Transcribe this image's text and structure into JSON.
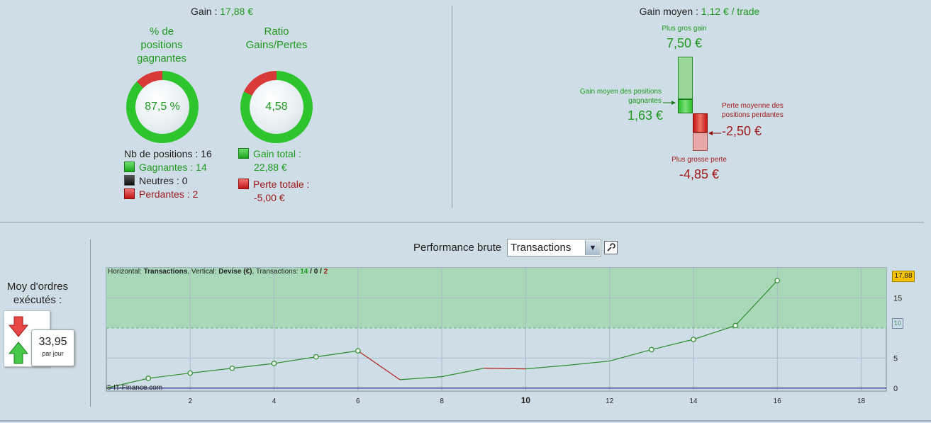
{
  "top_left": {
    "gain_label": "Gain :",
    "gain_value": "17,88 €",
    "donut1": {
      "title_l1": "% de",
      "title_l2": "positions",
      "title_l3": "gagnantes",
      "value": "87,5 %",
      "fraction_green": 0.875
    },
    "donut2": {
      "title_l1": "Ratio",
      "title_l2": "Gains/Pertes",
      "value": "4,58",
      "fraction_green": 0.82
    },
    "nb_positions": "Nb de positions : 16",
    "gagnantes": "Gagnantes : 14",
    "neutres": "Neutres : 0",
    "perdantes": "Perdantes : 2",
    "gain_total_label": "Gain total :",
    "gain_total_value": "22,88 €",
    "perte_totale_label": "Perte totale :",
    "perte_totale_value": "-5,00 €"
  },
  "top_right": {
    "gain_moyen_label": "Gain moyen :",
    "gain_moyen_value": "1,12 € / trade",
    "plus_gros_gain_label": "Plus gros gain",
    "plus_gros_gain_value": "7,50 €",
    "gain_moyen_pos_l1": "Gain moyen des positions",
    "gain_moyen_pos_l2": "gagnantes",
    "gain_moyen_pos_value": "1,63 €",
    "perte_moyenne_l1": "Perte moyenne des",
    "perte_moyenne_l2": "positions perdantes",
    "perte_moyenne_value": "-2,50 €",
    "plus_grosse_perte_label": "Plus grosse perte",
    "plus_grosse_perte_value": "-4,85 €"
  },
  "left_panel": {
    "moy_l1": "Moy d'ordres",
    "moy_l2": "exécutés :",
    "per_day_value": "33,95",
    "per_day_label": "par jour"
  },
  "performance": {
    "title": "Performance brute",
    "select_value": "Transactions",
    "info_prefix_h": "Horizontal: ",
    "info_h": "Transactions",
    "info_prefix_v": ", Vertical: ",
    "info_v": "Devise (€)",
    "info_prefix_t": ", Transactions: ",
    "info_t_win": "14",
    "info_t_sep1": " / ",
    "info_t_neutral": "0",
    "info_t_sep2": " / ",
    "info_t_lose": "2",
    "copyright": "© IT-Finance.com",
    "current_value_badge": "17,88",
    "threshold_badge": "10"
  },
  "chart_data": {
    "type": "line",
    "x": [
      0,
      1,
      2,
      3,
      4,
      5,
      6,
      7,
      8,
      9,
      10,
      11,
      12,
      13,
      14,
      15,
      16
    ],
    "y": [
      0,
      1.63,
      2.5,
      3.3,
      4.1,
      5.2,
      6.2,
      1.4,
      1.9,
      3.3,
      3.2,
      3.8,
      4.5,
      6.4,
      8.1,
      10.4,
      17.88
    ],
    "markers_at": [
      1,
      2,
      3,
      4,
      5,
      6,
      13,
      14,
      15,
      16
    ],
    "losing_segments": [
      [
        6,
        7
      ],
      [
        9,
        10
      ]
    ],
    "xlim": [
      0,
      18.6
    ],
    "ylim": [
      -0.5,
      20
    ],
    "x_ticks": [
      "2",
      "4",
      "6",
      "8",
      "10",
      "12",
      "14",
      "16",
      "18"
    ],
    "y_ticks": [
      "0",
      "5",
      "15"
    ],
    "highlight_band_from": 10,
    "colors": {
      "gain": "#2e8b2e",
      "loss": "#b22222",
      "band": "#a8d8b8",
      "zero_line": "#1a237e"
    }
  }
}
